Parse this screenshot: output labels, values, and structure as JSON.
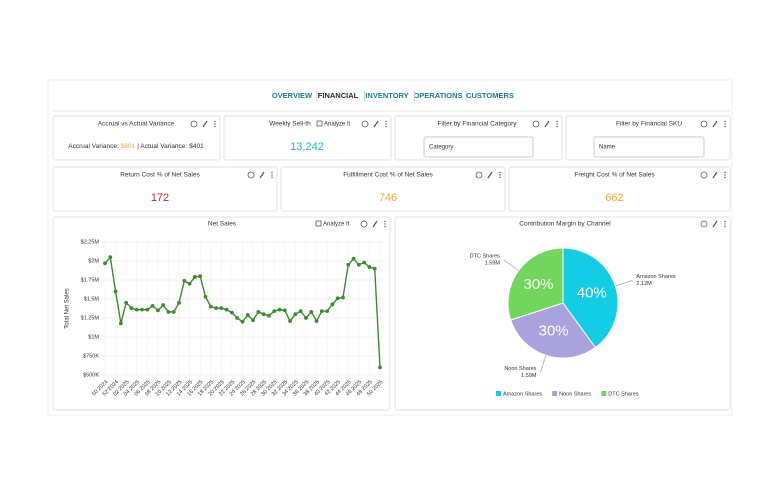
{
  "nav": {
    "tabs": [
      "OVERVIEW",
      "FINANCIAL",
      "INVENTORY",
      "OPERATIONS",
      "CUSTOMERS"
    ],
    "active": 1
  },
  "widgets": {
    "accrual": {
      "title": "Accrual vs Actual Variance",
      "label1": "Accrual Variance:",
      "value1": "$601",
      "label2": "| Actual Variance:",
      "value2": "$401"
    },
    "weekly": {
      "title": "Weekly Sell-th",
      "action": "Analyze It",
      "value": "13,242"
    },
    "category_filter": {
      "title": "Filter by Financial Category",
      "placeholder": "Category"
    },
    "sku_filter": {
      "title": "Filter by Financial SKU",
      "placeholder": "Name"
    },
    "return_cost": {
      "title": "Return Cost % of Net Sales",
      "value": "172"
    },
    "fulfillment_cost": {
      "title": "Fulfillment Cost % of Net Sales",
      "value": "746"
    },
    "freight_cost": {
      "title": "Freight Cost % of Net Sales",
      "value": "662"
    }
  },
  "chart_data": [
    {
      "type": "line",
      "title": "Net Sales",
      "action": "Analyze It",
      "y_label": "Total Net Sales",
      "categories": [
        "50 2024",
        null,
        "52 2024",
        null,
        "02 2025",
        null,
        "04 2025",
        null,
        "06 2025",
        null,
        "08 2025",
        null,
        "10 2025",
        null,
        "12 2025",
        null,
        "14 2025",
        null,
        "16 2025",
        null,
        "18 2025",
        null,
        "20 2025",
        null,
        "22 2025",
        null,
        "24 2025",
        null,
        "26 2025",
        null,
        "28 2025",
        null,
        "30 2025",
        null,
        "32 2025",
        null,
        "34 2025",
        null,
        "36 2025",
        null,
        "38 2025",
        null,
        "40 2025",
        null,
        "42 2025",
        null,
        "44 2025",
        null,
        "46 2025",
        null,
        "48 2025",
        null,
        "50 2025"
      ],
      "series": [
        {
          "name": "Net Sales",
          "color": "#3d8b2f",
          "values": [
            1970000,
            2050000,
            1600000,
            1180000,
            1450000,
            1380000,
            1360000,
            1360000,
            1360000,
            1410000,
            1350000,
            1420000,
            1330000,
            1330000,
            1450000,
            1740000,
            1700000,
            1790000,
            1800000,
            1530000,
            1400000,
            1380000,
            1380000,
            1360000,
            1320000,
            1250000,
            1200000,
            1290000,
            1220000,
            1330000,
            1300000,
            1280000,
            1340000,
            1360000,
            1350000,
            1210000,
            1300000,
            1340000,
            1250000,
            1330000,
            1210000,
            1340000,
            1340000,
            1430000,
            1510000,
            1520000,
            1950000,
            2030000,
            1950000,
            1980000,
            1920000,
            1900000,
            600000
          ]
        }
      ],
      "ylim": [
        500000,
        2250000
      ],
      "yticks": [
        {
          "value": 500000,
          "label": "$500K"
        },
        {
          "value": 750000,
          "label": "$750K"
        },
        {
          "value": 1000000,
          "label": "$1M"
        },
        {
          "value": 1250000,
          "label": "$1.25M"
        },
        {
          "value": 1500000,
          "label": "$1.5M"
        },
        {
          "value": 1750000,
          "label": "$1.75M"
        },
        {
          "value": 2000000,
          "label": "$2M"
        },
        {
          "value": 2250000,
          "label": "$2.25M"
        }
      ],
      "grid": true
    },
    {
      "type": "pie",
      "title": "Contribution Margin by Channel",
      "categories": [
        "Amazon Shares",
        "Noon Shares",
        "DTC Shares"
      ],
      "values": [
        40,
        30,
        30
      ],
      "value_labels": [
        "40%",
        "30%",
        "30%"
      ],
      "amount_labels": [
        "2.12M",
        "1.59M",
        "1.59M"
      ],
      "colors": [
        "#12cde3",
        "#a9a2dc",
        "#72d65c"
      ],
      "legend": "bottom"
    }
  ]
}
